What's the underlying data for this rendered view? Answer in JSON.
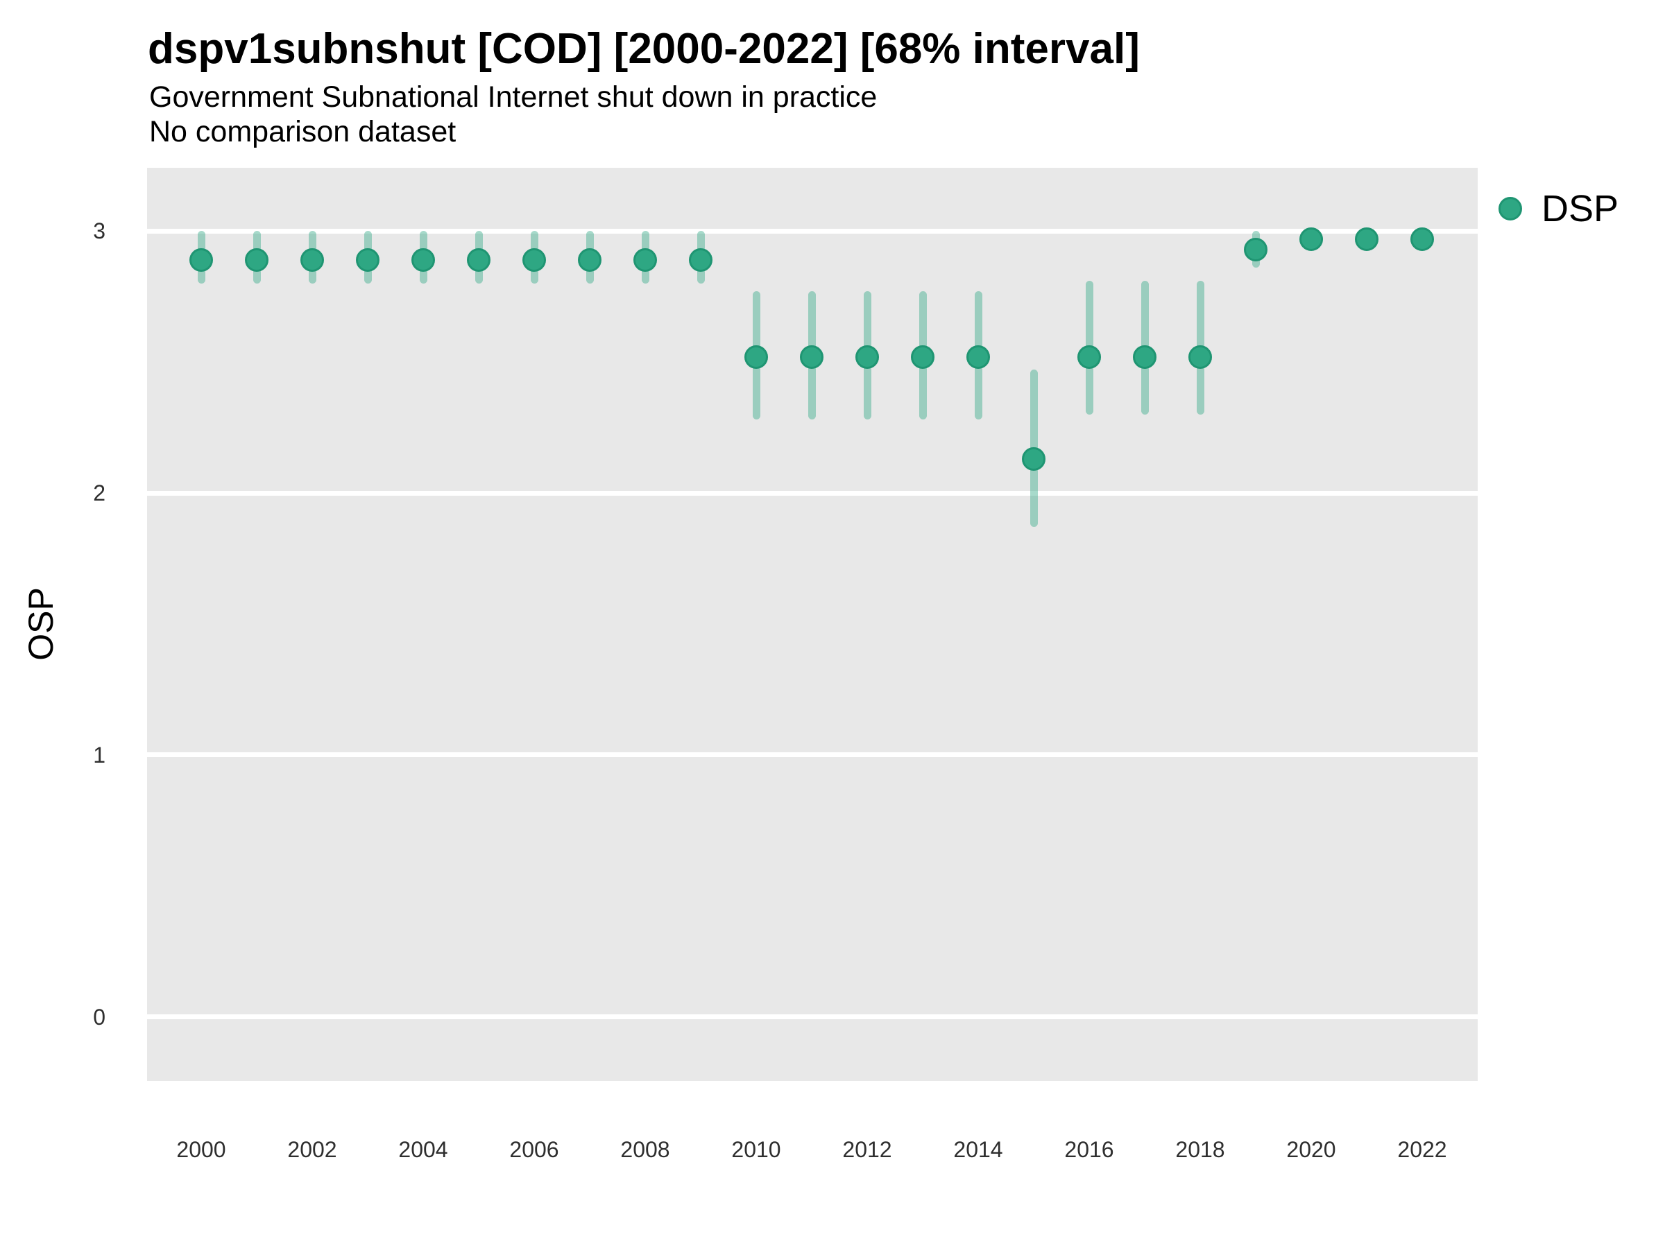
{
  "header": {
    "title": "dspv1subnshut [COD] [2000-2022] [68% interval]",
    "subtitle_line1": "Government Subnational Internet shut down in practice",
    "subtitle_line2": "No comparison dataset"
  },
  "axes": {
    "y_title": "OSP",
    "y_tick_labels": [
      "3",
      "2",
      "1",
      "0"
    ],
    "x_tick_labels": [
      "2000",
      "2002",
      "2004",
      "2006",
      "2008",
      "2010",
      "2012",
      "2014",
      "2016",
      "2018",
      "2020",
      "2022"
    ]
  },
  "legend": {
    "items": [
      {
        "label": "DSP",
        "marker": "circle-icon"
      }
    ]
  },
  "colors": {
    "marker_fill": "#2EA783",
    "marker_stroke": "#1F9572",
    "interval_bar": "rgba(46,167,131,0.42)",
    "panel_background": "#E8E8E8",
    "gridline": "#FFFFFF",
    "tick_text": "#2E2E2E"
  },
  "chart_data": {
    "type": "pointrange",
    "title": "dspv1subnshut [COD] [2000-2022] [68% interval]",
    "subtitle": [
      "Government Subnational Internet shut down in practice",
      "No comparison dataset"
    ],
    "xlabel": "",
    "ylabel": "OSP",
    "legend_position": "right",
    "grid": true,
    "panel_background": "gray",
    "x_ticks": [
      2000,
      2002,
      2004,
      2006,
      2008,
      2010,
      2012,
      2014,
      2016,
      2018,
      2020,
      2022
    ],
    "y_ticks": [
      0,
      1,
      2,
      3
    ],
    "xlim": [
      1999,
      2023
    ],
    "ylim": [
      -0.25,
      3.25
    ],
    "series": [
      {
        "name": "DSP",
        "points": [
          {
            "year": 2000,
            "est": 2.89,
            "lo": 2.8,
            "hi": 3.0
          },
          {
            "year": 2001,
            "est": 2.89,
            "lo": 2.8,
            "hi": 3.0
          },
          {
            "year": 2002,
            "est": 2.89,
            "lo": 2.8,
            "hi": 3.0
          },
          {
            "year": 2003,
            "est": 2.89,
            "lo": 2.8,
            "hi": 3.0
          },
          {
            "year": 2004,
            "est": 2.89,
            "lo": 2.8,
            "hi": 3.0
          },
          {
            "year": 2005,
            "est": 2.89,
            "lo": 2.8,
            "hi": 3.0
          },
          {
            "year": 2006,
            "est": 2.89,
            "lo": 2.8,
            "hi": 3.0
          },
          {
            "year": 2007,
            "est": 2.89,
            "lo": 2.8,
            "hi": 3.0
          },
          {
            "year": 2008,
            "est": 2.89,
            "lo": 2.8,
            "hi": 3.0
          },
          {
            "year": 2009,
            "est": 2.89,
            "lo": 2.8,
            "hi": 3.0
          },
          {
            "year": 2010,
            "est": 2.52,
            "lo": 2.28,
            "hi": 2.77
          },
          {
            "year": 2011,
            "est": 2.52,
            "lo": 2.28,
            "hi": 2.77
          },
          {
            "year": 2012,
            "est": 2.52,
            "lo": 2.28,
            "hi": 2.77
          },
          {
            "year": 2013,
            "est": 2.52,
            "lo": 2.28,
            "hi": 2.77
          },
          {
            "year": 2014,
            "est": 2.52,
            "lo": 2.28,
            "hi": 2.77
          },
          {
            "year": 2015,
            "est": 2.13,
            "lo": 1.87,
            "hi": 2.47
          },
          {
            "year": 2016,
            "est": 2.52,
            "lo": 2.3,
            "hi": 2.81
          },
          {
            "year": 2017,
            "est": 2.52,
            "lo": 2.3,
            "hi": 2.81
          },
          {
            "year": 2018,
            "est": 2.52,
            "lo": 2.3,
            "hi": 2.81
          },
          {
            "year": 2019,
            "est": 2.93,
            "lo": 2.86,
            "hi": 3.0
          },
          {
            "year": 2020,
            "est": 2.97,
            "lo": 2.93,
            "hi": 2.99
          },
          {
            "year": 2021,
            "est": 2.97,
            "lo": 2.93,
            "hi": 2.99
          },
          {
            "year": 2022,
            "est": 2.97,
            "lo": 2.93,
            "hi": 2.99
          }
        ]
      }
    ]
  }
}
